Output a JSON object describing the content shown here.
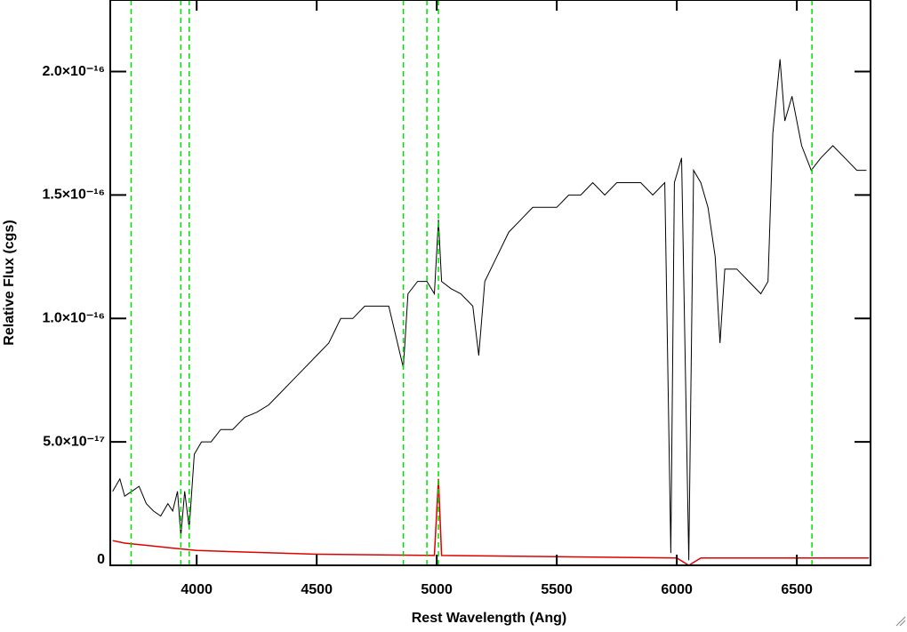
{
  "chart_data": {
    "type": "line",
    "xlabel": "Rest Wavelength (Ang)",
    "ylabel": "Relative Flux (cgs)",
    "xlim": [
      3640,
      6807
    ],
    "ylim": [
      0,
      2.29e-16
    ],
    "xticks": [
      4000,
      4500,
      5000,
      5500,
      6000,
      6500
    ],
    "yticks": [
      0,
      {
        "value": 5e-17,
        "label": "5.0×10⁻¹⁷"
      },
      {
        "value": 1e-16,
        "label": "1.0×10⁻¹⁶"
      },
      {
        "value": 1.5e-16,
        "label": "1.5×10⁻¹⁶"
      },
      {
        "value": 2e-16,
        "label": "2.0×10⁻¹⁶"
      }
    ],
    "vlines": [
      3727,
      3934,
      3969,
      4861,
      4959,
      5007,
      6563
    ],
    "vline_color": "#00e000",
    "series": [
      {
        "color": "#000000",
        "x": [
          3650,
          3680,
          3700,
          3730,
          3760,
          3790,
          3820,
          3850,
          3880,
          3900,
          3920,
          3934,
          3950,
          3969,
          3990,
          4020,
          4060,
          4100,
          4150,
          4200,
          4250,
          4300,
          4350,
          4400,
          4450,
          4500,
          4550,
          4600,
          4650,
          4700,
          4750,
          4800,
          4861,
          4880,
          4920,
          4959,
          4990,
          5007,
          5020,
          5060,
          5100,
          5150,
          5175,
          5200,
          5250,
          5300,
          5350,
          5400,
          5450,
          5500,
          5550,
          5600,
          5650,
          5700,
          5750,
          5800,
          5850,
          5900,
          5950,
          5975,
          5990,
          6020,
          6050,
          6070,
          6100,
          6130,
          6160,
          6180,
          6200,
          6250,
          6300,
          6350,
          6380,
          6400,
          6430,
          6450,
          6480,
          6520,
          6560,
          6600,
          6650,
          6700,
          6750,
          6790
        ],
        "values": [
          3e-17,
          3.5e-17,
          2.8e-17,
          3e-17,
          3.2e-17,
          2.5e-17,
          2.2e-17,
          2e-17,
          2.5e-17,
          2.2e-17,
          3e-17,
          1.2e-17,
          3e-17,
          1.5e-17,
          4.5e-17,
          5e-17,
          5e-17,
          5.5e-17,
          5.5e-17,
          6e-17,
          6.2e-17,
          6.5e-17,
          7e-17,
          7.5e-17,
          8e-17,
          8.5e-17,
          9e-17,
          1e-16,
          1e-16,
          1.05e-16,
          1.05e-16,
          1.05e-16,
          8e-17,
          1.1e-16,
          1.15e-16,
          1.15e-16,
          1.1e-16,
          1.4e-16,
          1.15e-16,
          1.12e-16,
          1.1e-16,
          1.05e-16,
          8.5e-17,
          1.15e-16,
          1.25e-16,
          1.35e-16,
          1.4e-16,
          1.45e-16,
          1.45e-16,
          1.45e-16,
          1.5e-16,
          1.5e-16,
          1.55e-16,
          1.5e-16,
          1.55e-16,
          1.55e-16,
          1.55e-16,
          1.5e-16,
          1.55e-16,
          5e-18,
          1.55e-16,
          1.65e-16,
          2e-18,
          1.6e-16,
          1.55e-16,
          1.45e-16,
          1.25e-16,
          9e-17,
          1.2e-16,
          1.2e-16,
          1.15e-16,
          1.1e-16,
          1.15e-16,
          1.75e-16,
          2.05e-16,
          1.8e-16,
          1.9e-16,
          1.7e-16,
          1.6e-16,
          1.65e-16,
          1.7e-16,
          1.65e-16,
          1.6e-16,
          1.6e-16
        ]
      },
      {
        "color": "#e00000",
        "x": [
          3650,
          3700,
          3800,
          3900,
          4000,
          4500,
          4990,
          5007,
          5020,
          5500,
          6000,
          6050,
          6100,
          6500,
          6800
        ],
        "values": [
          1e-17,
          9e-18,
          8e-18,
          7e-18,
          6e-18,
          4.5e-18,
          4e-18,
          3.5e-17,
          4e-18,
          3.5e-18,
          3e-18,
          0,
          3e-18,
          3e-18,
          3e-18
        ]
      }
    ]
  }
}
